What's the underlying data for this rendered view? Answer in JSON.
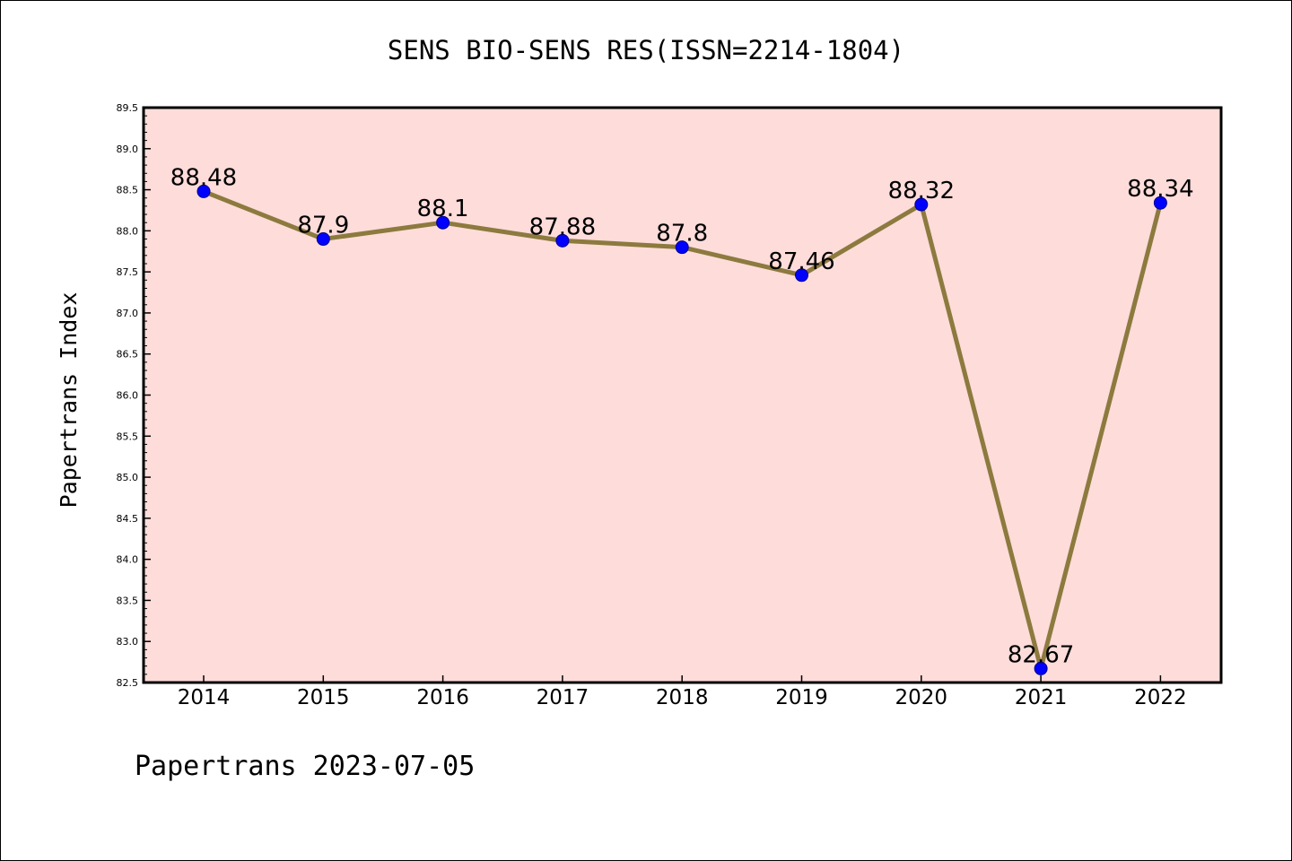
{
  "page": {
    "title": "SENS BIO-SENS RES(ISSN=2214-1804)",
    "footer": "Papertrans 2023-07-05"
  },
  "colors": {
    "plot_background": "#fddcda",
    "line": "#8c7a3e",
    "marker": "#0000ff"
  },
  "chart_data": {
    "type": "line",
    "title": "SENS BIO-SENS RES(ISSN=2214-1804)",
    "xlabel": "",
    "ylabel": "Papertrans Index",
    "categories": [
      "2014",
      "2015",
      "2016",
      "2017",
      "2018",
      "2019",
      "2020",
      "2021",
      "2022"
    ],
    "values": [
      88.48,
      87.9,
      88.1,
      87.88,
      87.8,
      87.46,
      88.32,
      82.67,
      88.34
    ],
    "data_labels": [
      "88.48",
      "87.9",
      "88.1",
      "87.88",
      "87.8",
      "87.46",
      "88.32",
      "82.67",
      "88.34"
    ],
    "ylim": [
      82.5,
      89.5
    ],
    "yticks": [
      "82.5",
      "83.0",
      "83.5",
      "84.0",
      "84.5",
      "85.0",
      "85.5",
      "86.0",
      "86.5",
      "87.0",
      "87.5",
      "88.0",
      "88.5",
      "89.0",
      "89.5"
    ],
    "grid": false,
    "legend": "none"
  }
}
